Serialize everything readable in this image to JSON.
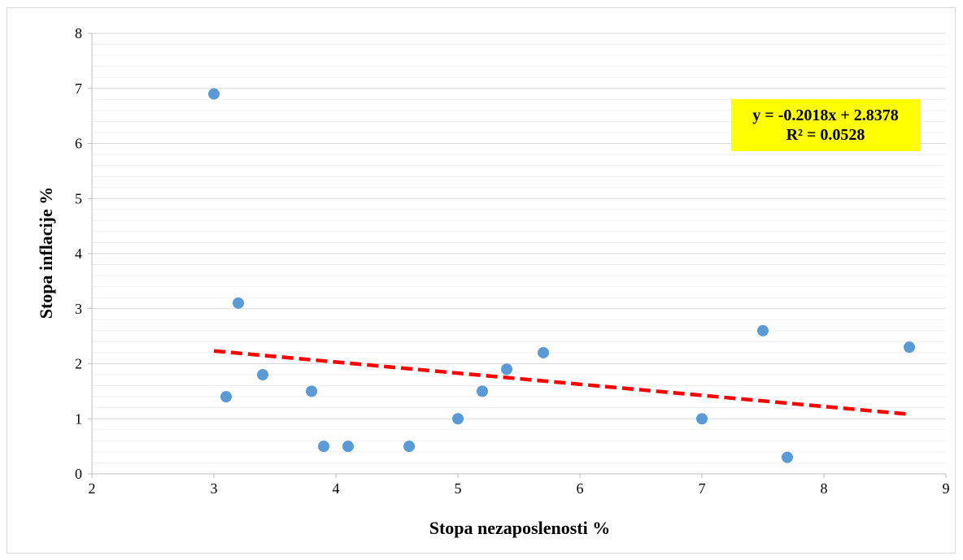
{
  "chart_data": {
    "type": "scatter",
    "xlabel": "Stopa nezaposlenosti %",
    "ylabel": "Stopa inflacije %",
    "xlim": [
      2,
      9
    ],
    "ylim": [
      0,
      8
    ],
    "x_ticks": [
      "2",
      "3",
      "4",
      "5",
      "6",
      "7",
      "8",
      "9"
    ],
    "y_ticks": [
      "0",
      "1",
      "2",
      "3",
      "4",
      "5",
      "6",
      "7",
      "8"
    ],
    "grid": "horizontal major and minor",
    "points": [
      {
        "x": 3.0,
        "y": 6.9
      },
      {
        "x": 3.1,
        "y": 1.4
      },
      {
        "x": 3.2,
        "y": 3.1
      },
      {
        "x": 3.4,
        "y": 1.8
      },
      {
        "x": 3.8,
        "y": 1.5
      },
      {
        "x": 3.9,
        "y": 0.5
      },
      {
        "x": 4.1,
        "y": 0.5
      },
      {
        "x": 4.6,
        "y": 0.5
      },
      {
        "x": 5.0,
        "y": 1.0
      },
      {
        "x": 5.2,
        "y": 1.5
      },
      {
        "x": 5.4,
        "y": 1.9
      },
      {
        "x": 5.7,
        "y": 2.2
      },
      {
        "x": 7.0,
        "y": 1.0
      },
      {
        "x": 7.5,
        "y": 2.6
      },
      {
        "x": 7.7,
        "y": 0.3
      },
      {
        "x": 8.7,
        "y": 2.3
      }
    ],
    "trendline": {
      "type": "linear",
      "slope": -0.2018,
      "intercept": 2.8378,
      "x_range": [
        3.0,
        8.7
      ],
      "equation_label": "y = -0.2018x + 2.8378",
      "r2_label": "R² = 0.0528"
    },
    "colors": {
      "points": "#5b9bd5",
      "trendline": "#ff0000",
      "equation_box": "#ffff00",
      "gridline": "#d9d9d9"
    }
  }
}
